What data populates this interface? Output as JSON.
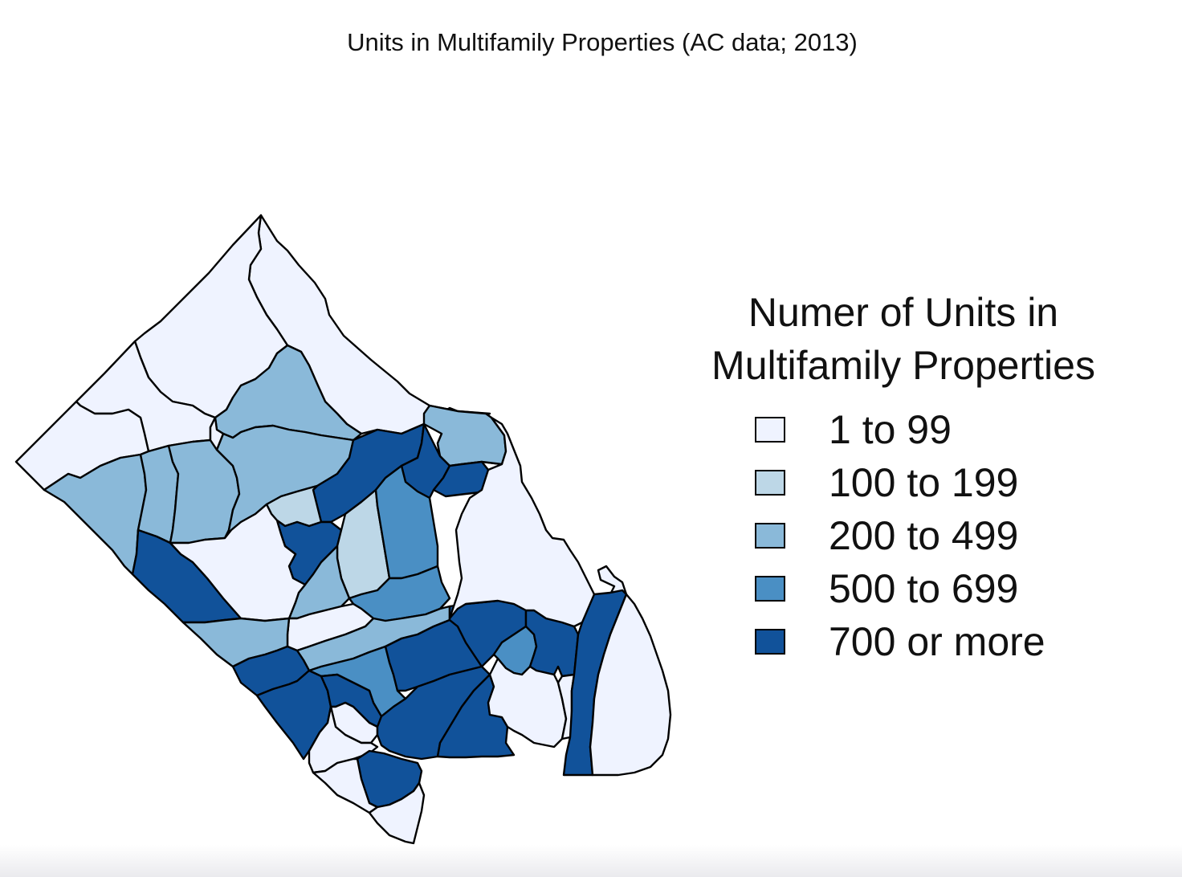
{
  "map": {
    "title": "Units in Multifamily Properties (AC data; 2013)"
  },
  "legend": {
    "title_line1": "Numer of Units in",
    "title_line2": "Multifamily Properties",
    "items": [
      {
        "label": "1 to 99",
        "color": "#EFF3FF"
      },
      {
        "label": "100 to 199",
        "color": "#BDD7E7"
      },
      {
        "label": "200 to 499",
        "color": "#8AB9D9"
      },
      {
        "label": "500 to 699",
        "color": "#4A8FC4"
      },
      {
        "label": "700 or more",
        "color": "#11529A"
      }
    ]
  },
  "region_classes": [
    {
      "name": "region-north-point",
      "class": 0
    },
    {
      "name": "region-northwest-corner",
      "class": 0
    },
    {
      "name": "region-northwest-strip",
      "class": 0
    },
    {
      "name": "region-potomac-edge",
      "class": 0
    },
    {
      "name": "region-north-east-band",
      "class": 2
    },
    {
      "name": "region-west-band",
      "class": 2
    },
    {
      "name": "region-west-middle",
      "class": 2
    },
    {
      "name": "region-west-center",
      "class": 2
    },
    {
      "name": "region-center-north",
      "class": 2
    },
    {
      "name": "region-center-small",
      "class": 1
    },
    {
      "name": "region-notch",
      "class": 0
    },
    {
      "name": "region-central-arc",
      "class": 4
    },
    {
      "name": "region-northeast-tip",
      "class": 4
    },
    {
      "name": "region-northeast-strip",
      "class": 2
    },
    {
      "name": "region-east-block-a",
      "class": 4
    },
    {
      "name": "region-east-block-b",
      "class": 4
    },
    {
      "name": "region-east-block-c",
      "class": 3
    },
    {
      "name": "region-center-light",
      "class": 1
    },
    {
      "name": "region-center-mid",
      "class": 3
    },
    {
      "name": "region-center-dark",
      "class": 4
    },
    {
      "name": "region-center-south",
      "class": 2
    },
    {
      "name": "region-southwest-dark",
      "class": 4
    },
    {
      "name": "region-south-light",
      "class": 0
    },
    {
      "name": "region-south-gap",
      "class": 0
    },
    {
      "name": "region-southwest-band",
      "class": 2
    },
    {
      "name": "region-south-center-band",
      "class": 2
    },
    {
      "name": "region-south-mid-blue",
      "class": 3
    },
    {
      "name": "region-south-dark-a",
      "class": 4
    },
    {
      "name": "region-south-dark-b",
      "class": 4
    },
    {
      "name": "region-south-dark-c",
      "class": 4
    },
    {
      "name": "region-south-dark-d",
      "class": 4
    },
    {
      "name": "region-south-dark-e",
      "class": 4
    },
    {
      "name": "region-south-dark-f",
      "class": 4
    },
    {
      "name": "region-south-dark-g",
      "class": 4
    },
    {
      "name": "region-south-dark-h",
      "class": 4
    },
    {
      "name": "region-south-mid-b",
      "class": 3
    },
    {
      "name": "region-south-light-a",
      "class": 0
    },
    {
      "name": "region-south-light-b",
      "class": 0
    },
    {
      "name": "region-south-light-c",
      "class": 0
    },
    {
      "name": "region-east-light",
      "class": 0
    },
    {
      "name": "region-east-strip",
      "class": 4
    },
    {
      "name": "region-south-tip-dark",
      "class": 4
    },
    {
      "name": "region-south-tip-light",
      "class": 0
    },
    {
      "name": "region-south-tip-white",
      "class": 0
    },
    {
      "name": "region-south-white-b",
      "class": 0
    },
    {
      "name": "region-east-white",
      "class": 0
    }
  ]
}
